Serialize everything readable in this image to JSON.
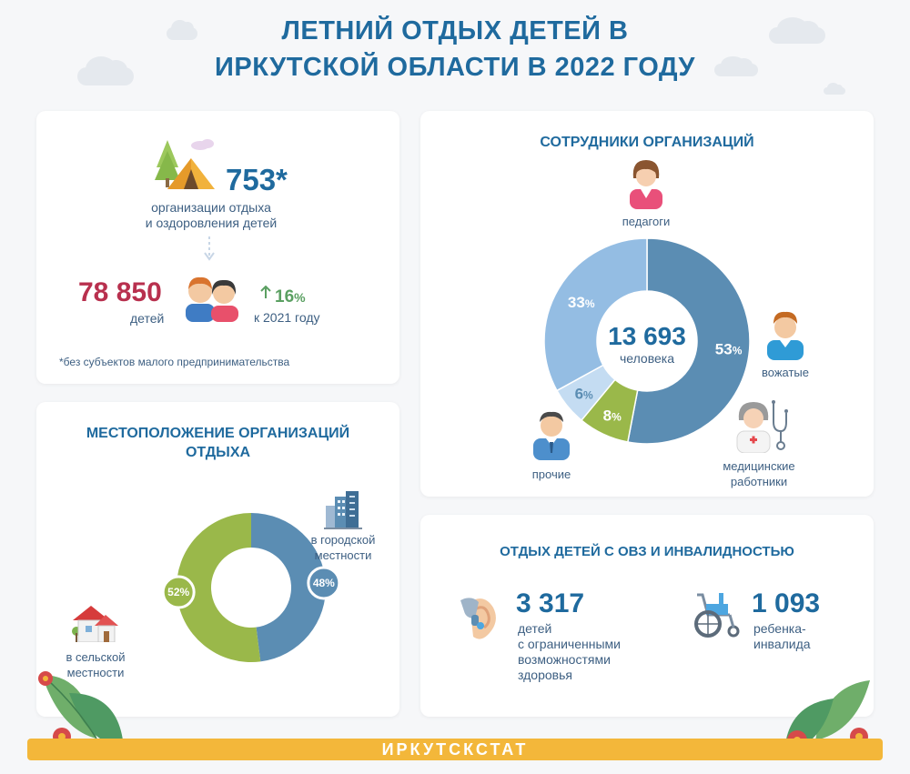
{
  "title": {
    "line1": "ЛЕТНИЙ ОТДЫХ ДЕТЕЙ В",
    "line2": "ИРКУТСКОЙ ОБЛАСТИ В 2022 ГОДУ"
  },
  "organizations": {
    "count": "753*",
    "label_line1": "организации отдыха",
    "label_line2": "и оздоровления детей",
    "children_count": "78 850",
    "children_label": "детей",
    "growth_value": "16",
    "growth_unit": "%",
    "growth_label": "к 2021 году",
    "footnote": "*без субъектов малого предпринимательства"
  },
  "location": {
    "title_line1": "МЕСТОПОЛОЖЕНИЕ ОРГАНИЗАЦИЙ",
    "title_line2": "ОТДЫХА",
    "urban_label_line1": "в городской",
    "urban_label_line2": "местности",
    "rural_label_line1": "в сельской",
    "rural_label_line2": "местности",
    "urban_pct": "48%",
    "rural_pct": "52%"
  },
  "staff": {
    "title": "СОТРУДНИКИ ОРГАНИЗАЦИЙ",
    "total": "13 693",
    "total_label": "человека",
    "teachers_label": "педагоги",
    "counselors_label": "вожатые",
    "medical_label_line1": "медицинские",
    "medical_label_line2": "работники",
    "other_label": "прочие"
  },
  "disability": {
    "title": "ОТДЫХ ДЕТЕЙ С ОВЗ И ИНВАЛИДНОСТЬЮ",
    "ovz_count": "3 317",
    "ovz_line1": "детей",
    "ovz_line2": "с ограниченными",
    "ovz_line3": "возможностями",
    "ovz_line4": "здоровья",
    "inv_count": "1 093",
    "inv_line1": "ребенка-",
    "inv_line2": "инвалида"
  },
  "footer": {
    "brand": "ИРКУТСКСТАТ"
  },
  "chart_data": [
    {
      "type": "pie",
      "categories": [
        "в городской местности",
        "в сельской местности"
      ],
      "values": [
        48,
        52
      ],
      "colors": [
        "#5b8db3",
        "#9ab84a"
      ]
    },
    {
      "type": "pie",
      "categories": [
        "педагоги",
        "вожатые",
        "медицинские работники",
        "прочие"
      ],
      "values": [
        53,
        8,
        6,
        33
      ],
      "colors": [
        "#5b8db3",
        "#9ab84a",
        "#c4dcf2",
        "#94bde3"
      ]
    }
  ],
  "colors": {
    "title_blue": "#1f6a9e",
    "accent_red": "#b8304e",
    "growth_green": "#5ba062",
    "footer_yellow": "#f3b73a"
  }
}
